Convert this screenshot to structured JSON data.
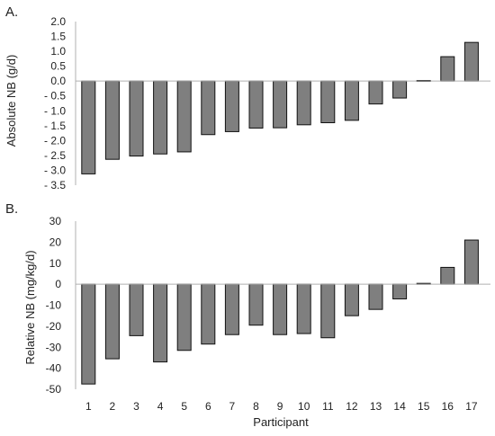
{
  "chart_data": [
    {
      "type": "bar",
      "panel_label": "A.",
      "ylabel": "Absolute NB (g/d)",
      "xlabel": "",
      "ylim": [
        -3.5,
        2.0
      ],
      "yticks": [
        2.0,
        1.5,
        1.0,
        0.5,
        0.0,
        -0.5,
        -1.0,
        -1.5,
        -2.0,
        -2.5,
        -3.0,
        -3.5
      ],
      "ytick_labels": [
        "2.0",
        "1.5",
        "1.0",
        "0.5",
        "0.0",
        "- 0.5",
        "- 1.0",
        "- 1.5",
        "- 2.0",
        "- 2.5",
        "- 3.0",
        "- 3.5"
      ],
      "categories": [
        "1",
        "2",
        "3",
        "4",
        "5",
        "6",
        "7",
        "8",
        "9",
        "10",
        "11",
        "12",
        "13",
        "14",
        "15",
        "16",
        "17"
      ],
      "values": [
        -3.12,
        -2.63,
        -2.52,
        -2.45,
        -2.38,
        -1.8,
        -1.7,
        -1.58,
        -1.57,
        -1.47,
        -1.4,
        -1.32,
        -0.77,
        -0.57,
        0.02,
        0.82,
        1.3
      ],
      "bar_color": "#7f7f7f",
      "grid": false
    },
    {
      "type": "bar",
      "panel_label": "B.",
      "ylabel": "Relative NB (mg/kg/d)",
      "xlabel": "Participant",
      "ylim": [
        -50,
        30
      ],
      "yticks": [
        30,
        20,
        10,
        0,
        -10,
        -20,
        -30,
        -40,
        -50
      ],
      "ytick_labels": [
        "30",
        "20",
        "10",
        "0",
        "-10",
        "-20",
        "-30",
        "-40",
        "-50"
      ],
      "categories": [
        "1",
        "2",
        "3",
        "4",
        "5",
        "6",
        "7",
        "8",
        "9",
        "10",
        "11",
        "12",
        "13",
        "14",
        "15",
        "16",
        "17"
      ],
      "values": [
        -47.5,
        -35.5,
        -24.5,
        -37,
        -31.5,
        -28.5,
        -24,
        -19.5,
        -24,
        -23.5,
        -25.5,
        -15,
        -12,
        -7,
        0.4,
        8,
        21
      ],
      "bar_color": "#7f7f7f",
      "grid": false
    }
  ]
}
